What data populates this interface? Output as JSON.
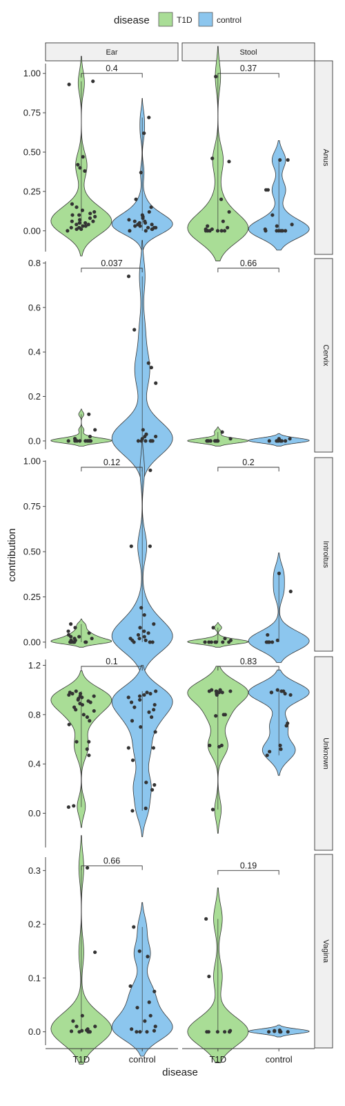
{
  "chart_data": {
    "type": "violin",
    "legend": {
      "title": "disease",
      "placement": "top",
      "entries": [
        {
          "label": "T1D",
          "color": "#a9dd96"
        },
        {
          "label": "control",
          "color": "#8cc6ee"
        }
      ]
    },
    "xlabel": "disease",
    "ylabel": "contribution",
    "columns": [
      "Ear",
      "Stool"
    ],
    "groups": [
      "T1D",
      "control"
    ],
    "rows": [
      {
        "name": "Anus",
        "ylim": [
          -0.15,
          1.08
        ],
        "ticks": [
          "0.00",
          "0.25",
          "0.50",
          "0.75",
          "1.00"
        ],
        "panels": [
          {
            "pvalue": "0.4",
            "T1D": [
              0.95,
              0.93,
              0.47,
              0.42,
              0.4,
              0.38,
              0.17,
              0.15,
              0.13,
              0.12,
              0.11,
              0.1,
              0.09,
              0.08,
              0.07,
              0.06,
              0.05,
              0.05,
              0.04,
              0.04,
              0.03,
              0.03,
              0.02,
              0.02,
              0.01,
              0.01,
              0.0,
              0.06,
              0.1
            ],
            "control": [
              0.72,
              0.62,
              0.37,
              0.2,
              0.15,
              0.12,
              0.1,
              0.09,
              0.08,
              0.07,
              0.06,
              0.05,
              0.05,
              0.04,
              0.04,
              0.03,
              0.03,
              0.02,
              0.02,
              0.01,
              0.01,
              0.0,
              0.0,
              0.02,
              0.06
            ]
          },
          {
            "pvalue": "0.37",
            "T1D": [
              0.98,
              0.46,
              0.44,
              0.2,
              0.12,
              0.06,
              0.03,
              0.02,
              0.01,
              0.01,
              0.0,
              0.0,
              0.0,
              0.0,
              0.0,
              0.0
            ],
            "control": [
              0.45,
              0.45,
              0.26,
              0.26,
              0.1,
              0.04,
              0.03,
              0.01,
              0.0,
              0.0,
              0.0,
              0.0,
              0.0,
              0.0
            ]
          }
        ]
      },
      {
        "name": "Cervix",
        "ylim": [
          -0.05,
          0.82
        ],
        "ticks": [
          "0.0",
          "0.2",
          "0.4",
          "0.6",
          "0.8"
        ],
        "panels": [
          {
            "pvalue": "0.037",
            "T1D": [
              0.12,
              0.05,
              0.02,
              0.01,
              0.01,
              0.0,
              0.0,
              0.0,
              0.0,
              0.0,
              0.0,
              0.0,
              0.0,
              0.0,
              0.0
            ],
            "control": [
              0.74,
              0.5,
              0.35,
              0.33,
              0.26,
              0.05,
              0.03,
              0.02,
              0.02,
              0.01,
              0.0,
              0.0,
              0.0,
              0.0,
              0.0,
              0.0
            ]
          },
          {
            "pvalue": "0.66",
            "T1D": [
              0.04,
              0.01,
              0.0,
              0.0,
              0.0,
              0.0,
              0.0,
              0.0,
              0.0,
              0.0
            ],
            "control": [
              0.01,
              0.01,
              0.0,
              0.0,
              0.0,
              0.0,
              0.0,
              0.0
            ]
          }
        ]
      },
      {
        "name": "Introitus",
        "ylim": [
          -0.05,
          1.02
        ],
        "ticks": [
          "0.00",
          "0.25",
          "0.50",
          "0.75",
          "1.00"
        ],
        "panels": [
          {
            "pvalue": "0.12",
            "T1D": [
              0.1,
              0.08,
              0.06,
              0.05,
              0.04,
              0.03,
              0.03,
              0.02,
              0.02,
              0.01,
              0.01,
              0.0,
              0.0,
              0.0,
              0.0,
              0.0,
              0.0,
              0.0
            ],
            "control": [
              0.95,
              0.53,
              0.53,
              0.19,
              0.15,
              0.1,
              0.08,
              0.06,
              0.05,
              0.04,
              0.03,
              0.02,
              0.02,
              0.01,
              0.01,
              0.0,
              0.0,
              0.0,
              0.0
            ]
          },
          {
            "pvalue": "0.2",
            "T1D": [
              0.08,
              0.02,
              0.01,
              0.0,
              0.0,
              0.0,
              0.0,
              0.0,
              0.0,
              0.0
            ],
            "control": [
              0.38,
              0.28,
              0.04,
              0.01,
              0.0,
              0.0,
              0.0,
              0.0,
              0.0
            ]
          }
        ]
      },
      {
        "name": "Unknown",
        "ylim": [
          -0.3,
          1.27
        ],
        "ticks": [
          "0.0",
          "0.4",
          "0.8",
          "1.2"
        ],
        "panels": [
          {
            "pvalue": "0.1",
            "T1D": [
              0.99,
              0.98,
              0.97,
              0.97,
              0.96,
              0.95,
              0.95,
              0.94,
              0.93,
              0.92,
              0.91,
              0.9,
              0.89,
              0.88,
              0.86,
              0.84,
              0.83,
              0.8,
              0.78,
              0.75,
              0.72,
              0.58,
              0.58,
              0.52,
              0.47,
              0.06,
              0.05
            ],
            "control": [
              0.99,
              0.98,
              0.97,
              0.96,
              0.95,
              0.94,
              0.92,
              0.9,
              0.88,
              0.86,
              0.84,
              0.82,
              0.78,
              0.75,
              0.7,
              0.66,
              0.53,
              0.53,
              0.43,
              0.25,
              0.23,
              0.19,
              0.04,
              0.02
            ]
          },
          {
            "pvalue": "0.83",
            "T1D": [
              1.0,
              1.0,
              0.99,
              0.99,
              0.99,
              0.98,
              0.98,
              0.97,
              0.96,
              0.8,
              0.8,
              0.79,
              0.55,
              0.55,
              0.54,
              0.03
            ],
            "control": [
              1.0,
              0.99,
              0.99,
              0.98,
              0.98,
              0.97,
              0.96,
              0.73,
              0.71,
              0.55,
              0.52,
              0.5,
              0.47
            ]
          }
        ]
      },
      {
        "name": "Vagina",
        "ylim": [
          -0.03,
          0.33
        ],
        "ticks": [
          "0.0",
          "0.1",
          "0.2",
          "0.3"
        ],
        "panels": [
          {
            "pvalue": "0.66",
            "T1D": [
              0.305,
              0.148,
              0.03,
              0.02,
              0.01,
              0.01,
              0.005,
              0.003,
              0.002,
              0.001,
              0.0,
              0.0,
              0.0,
              0.0,
              0.0
            ],
            "control": [
              0.195,
              0.15,
              0.14,
              0.085,
              0.075,
              0.055,
              0.045,
              0.03,
              0.02,
              0.01,
              0.005,
              0.002,
              0.0,
              0.0,
              0.0
            ]
          },
          {
            "pvalue": "0.19",
            "T1D": [
              0.21,
              0.103,
              0.002,
              0.0,
              0.0,
              0.0,
              0.0,
              0.0,
              0.0
            ],
            "control": [
              0.003,
              0.002,
              0.001,
              0.0,
              0.0,
              0.0,
              0.0
            ]
          }
        ]
      }
    ]
  }
}
